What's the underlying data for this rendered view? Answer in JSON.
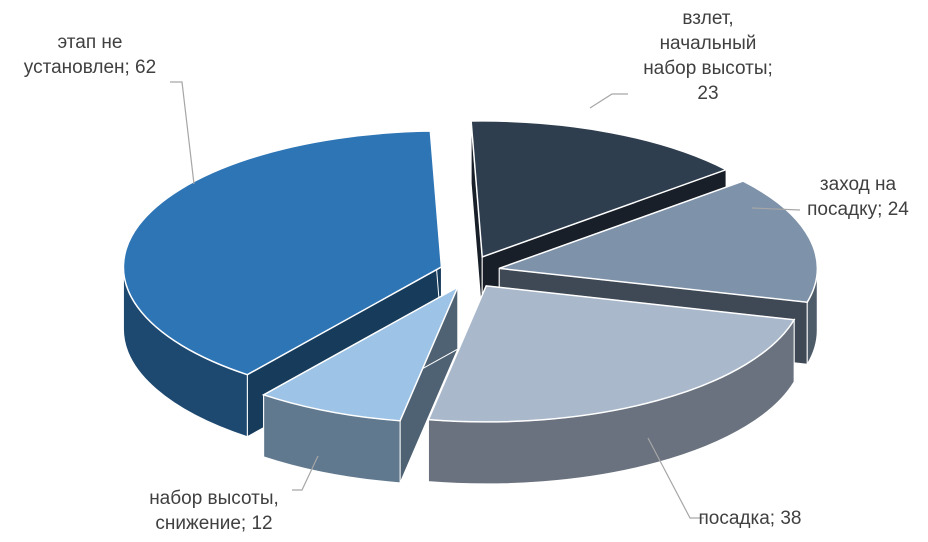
{
  "chart_data": {
    "type": "pie",
    "title": "",
    "slices": [
      {
        "label_lines": [
          "взлет,",
          "начальный",
          "набор высоты;",
          "23"
        ],
        "category": "взлет, начальный набор высоты",
        "value": 23,
        "color": "#2f3e4f"
      },
      {
        "label_lines": [
          "заход на",
          "посадку; 24"
        ],
        "category": "заход на посадку",
        "value": 24,
        "color": "#7e92aa"
      },
      {
        "label_lines": [
          "посадка; 38"
        ],
        "category": "посадка",
        "value": 38,
        "color": "#a9b8cb"
      },
      {
        "label_lines": [
          "набор высоты,",
          "снижение; 12"
        ],
        "category": "набор высоты, снижение",
        "value": 12,
        "color": "#9dc3e6"
      },
      {
        "label_lines": [
          "этап не",
          "установлен; 62"
        ],
        "category": "этап не установлен",
        "value": 62,
        "color": "#2e75b6"
      }
    ],
    "exploded": true,
    "three_d": true,
    "legend": "none"
  }
}
